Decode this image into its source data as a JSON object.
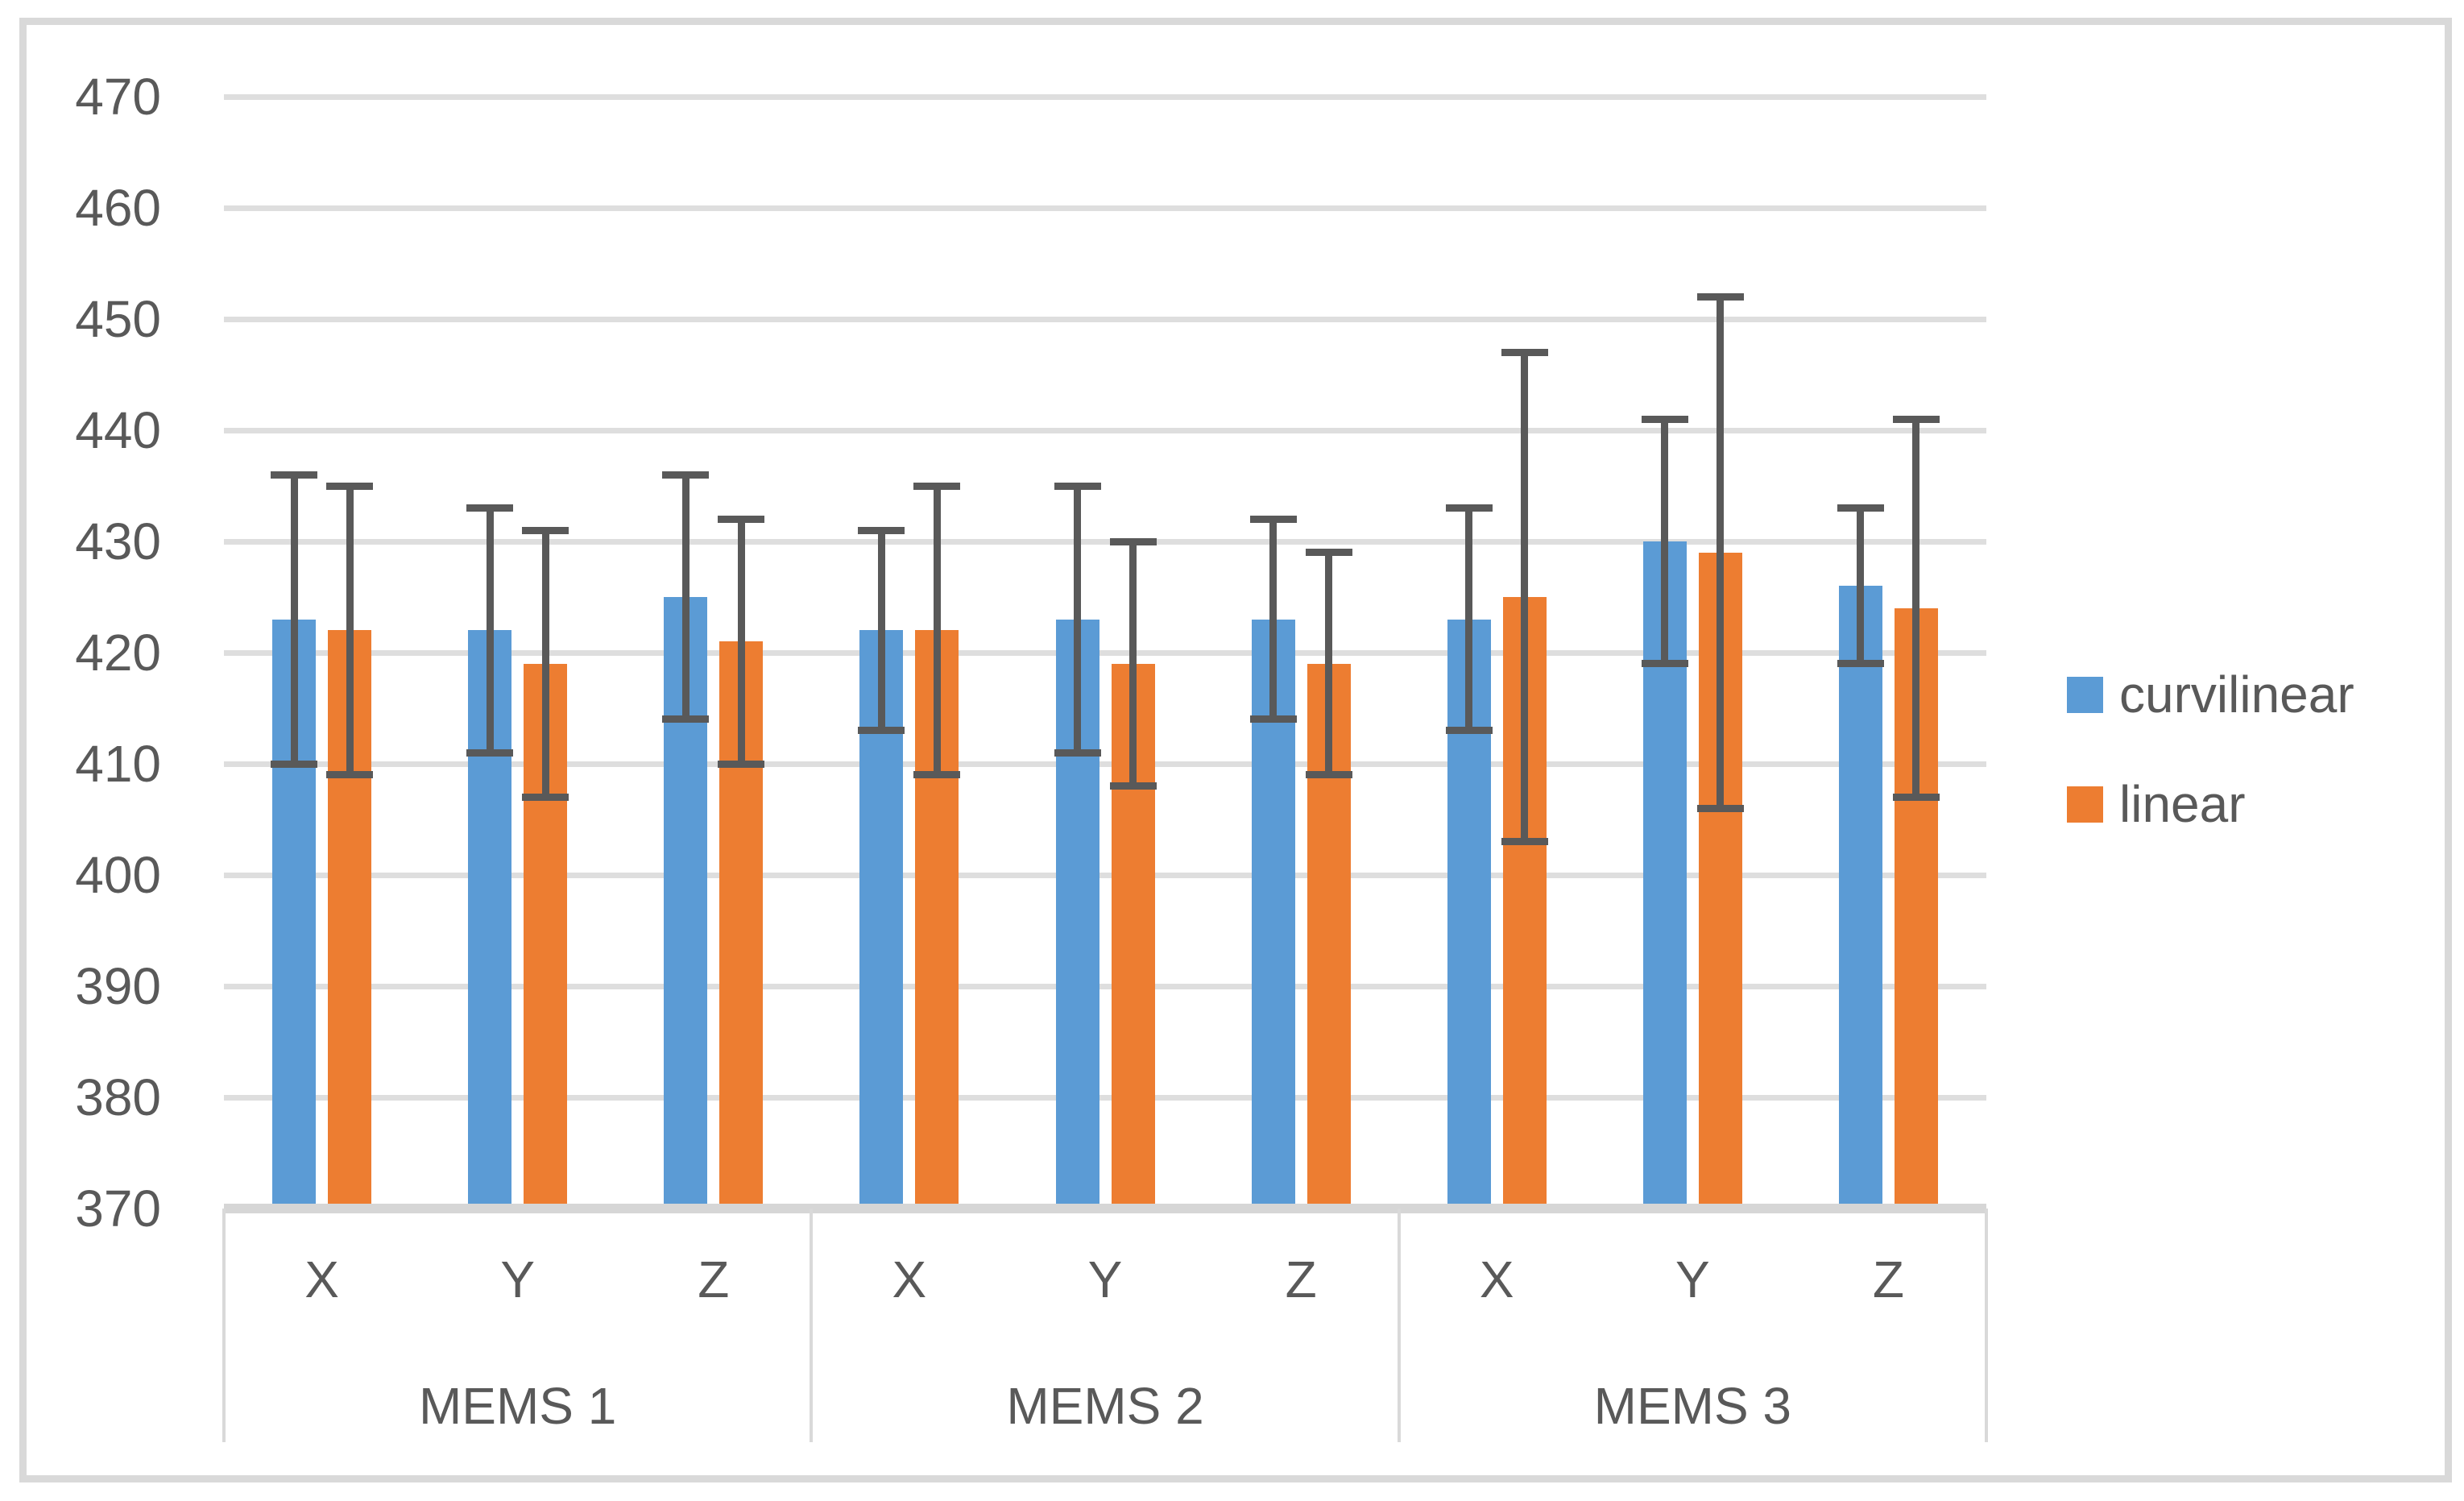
{
  "chart_data": {
    "type": "bar",
    "title": "",
    "groups": [
      "MEMS 1",
      "MEMS 2",
      "MEMS 3"
    ],
    "axes_per_group": [
      "X",
      "Y",
      "Z"
    ],
    "categories": [
      "MEMS 1 X",
      "MEMS 1 Y",
      "MEMS 1 Z",
      "MEMS 2 X",
      "MEMS 2 Y",
      "MEMS 2 Z",
      "MEMS 3 X",
      "MEMS 3 Y",
      "MEMS 3 Z"
    ],
    "series": [
      {
        "name": "curvilinear",
        "color": "#5B9BD5",
        "values": [
          423,
          422,
          425,
          422,
          423,
          423,
          423,
          430,
          426
        ],
        "error": [
          13,
          11,
          11,
          9,
          12,
          9,
          10,
          11,
          7
        ]
      },
      {
        "name": "linear",
        "color": "#ED7D31",
        "values": [
          422,
          419,
          421,
          422,
          419,
          419,
          425,
          429,
          424
        ],
        "error": [
          13,
          12,
          11,
          13,
          11,
          10,
          22,
          23,
          17
        ]
      }
    ],
    "error_bar_color": "#595959",
    "ylim": [
      370,
      470
    ],
    "ytick_step": 10,
    "yticks": [
      370,
      380,
      390,
      400,
      410,
      420,
      430,
      440,
      450,
      460,
      470
    ],
    "grid": true,
    "legend_position": "right-middle"
  }
}
